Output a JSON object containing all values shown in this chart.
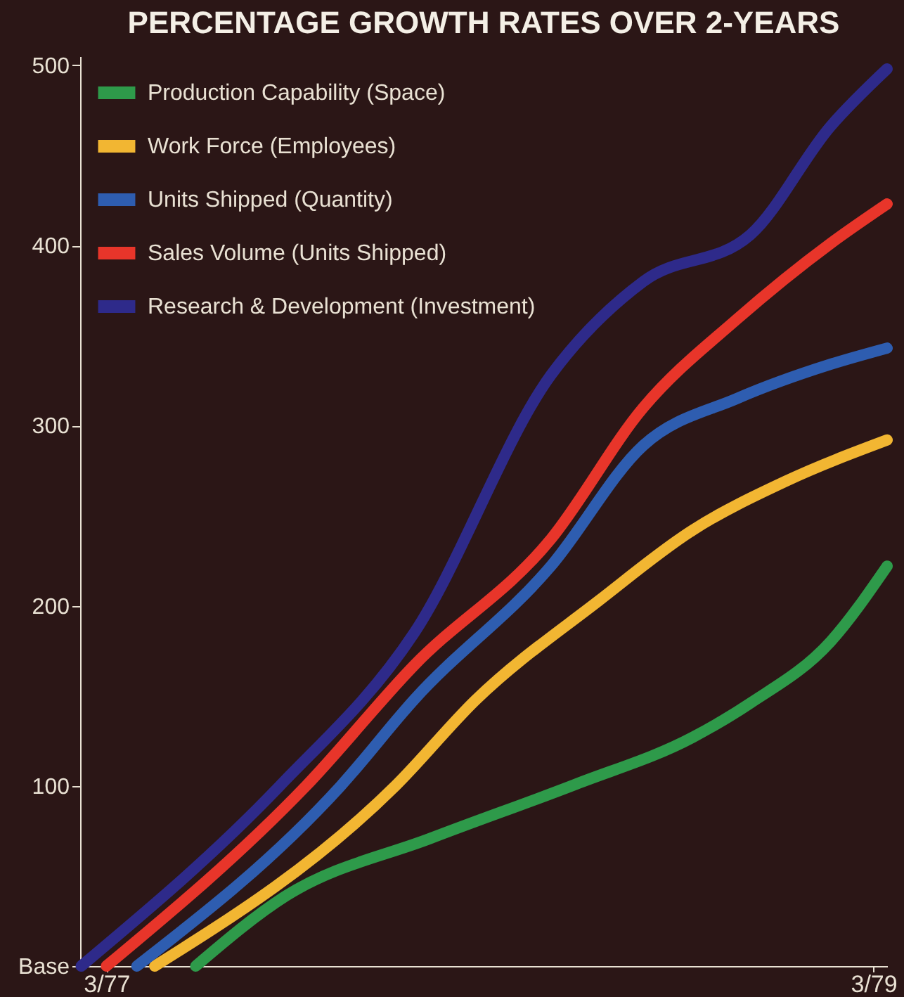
{
  "chart_data": {
    "type": "line",
    "title": "PERCENTAGE GROWTH RATES OVER 2-YEARS",
    "xlim": [
      "1977-02-04",
      "1979-03-14"
    ],
    "xticks": [
      {
        "value": "1977-03",
        "label": "3/77"
      },
      {
        "value": "1979-03",
        "label": "3/79"
      }
    ],
    "ylim": [
      0,
      505
    ],
    "yticks": [
      {
        "value": 0,
        "label": "Base"
      },
      100,
      200,
      300,
      400,
      500
    ],
    "legend": "top left",
    "line_style": "solid",
    "series": [
      {
        "name": "Production Capability (Space)",
        "color": "#2e9a4a",
        "x": [
          "1977-05-25",
          "1977-08-19",
          "1978-01-04",
          "1978-05-22",
          "1978-09-10",
          "1978-11-04",
          "1979-01-19",
          "1979-03-14"
        ],
        "values": [
          0,
          39,
          71,
          101,
          127,
          146,
          180,
          222
        ]
      },
      {
        "name": "Work Force (Employees)",
        "color": "#f2b632",
        "x": [
          "1977-04-16",
          "1977-12-01",
          "1978-02-16",
          "1978-06-13",
          "1978-09-10",
          "1978-12-07",
          "1979-03-14"
        ],
        "values": [
          0,
          100,
          148,
          203,
          242,
          269,
          292
        ]
      },
      {
        "name": "Units Shipped (Quantity)",
        "color": "#2e5db0",
        "x": [
          "1977-03-30",
          "1977-10-10",
          "1977-12-19",
          "1978-04-28",
          "1978-07-25",
          "1978-10-22",
          "1979-01-19",
          "1979-03-14"
        ],
        "values": [
          0,
          100,
          148,
          222,
          289,
          315,
          334,
          343
        ]
      },
      {
        "name": "Sales Volume (Units Shipped)",
        "color": "#e8352a",
        "x": [
          "1977-03-01",
          "1977-09-07",
          "1977-12-19",
          "1978-04-28",
          "1978-07-25",
          "1978-10-22",
          "1979-01-19",
          "1979-03-14"
        ],
        "values": [
          0,
          100,
          167,
          237,
          310,
          359,
          401,
          423
        ]
      },
      {
        "name": "Research & Development (Investment)",
        "color": "#2e2a8a",
        "x": [
          "1977-02-05",
          "1977-08-13",
          "1977-12-19",
          "1978-04-28",
          "1978-07-25",
          "1978-11-04",
          "1979-01-19",
          "1979-03-14"
        ],
        "values": [
          0,
          100,
          185,
          328,
          380,
          406,
          466,
          498
        ]
      }
    ]
  }
}
